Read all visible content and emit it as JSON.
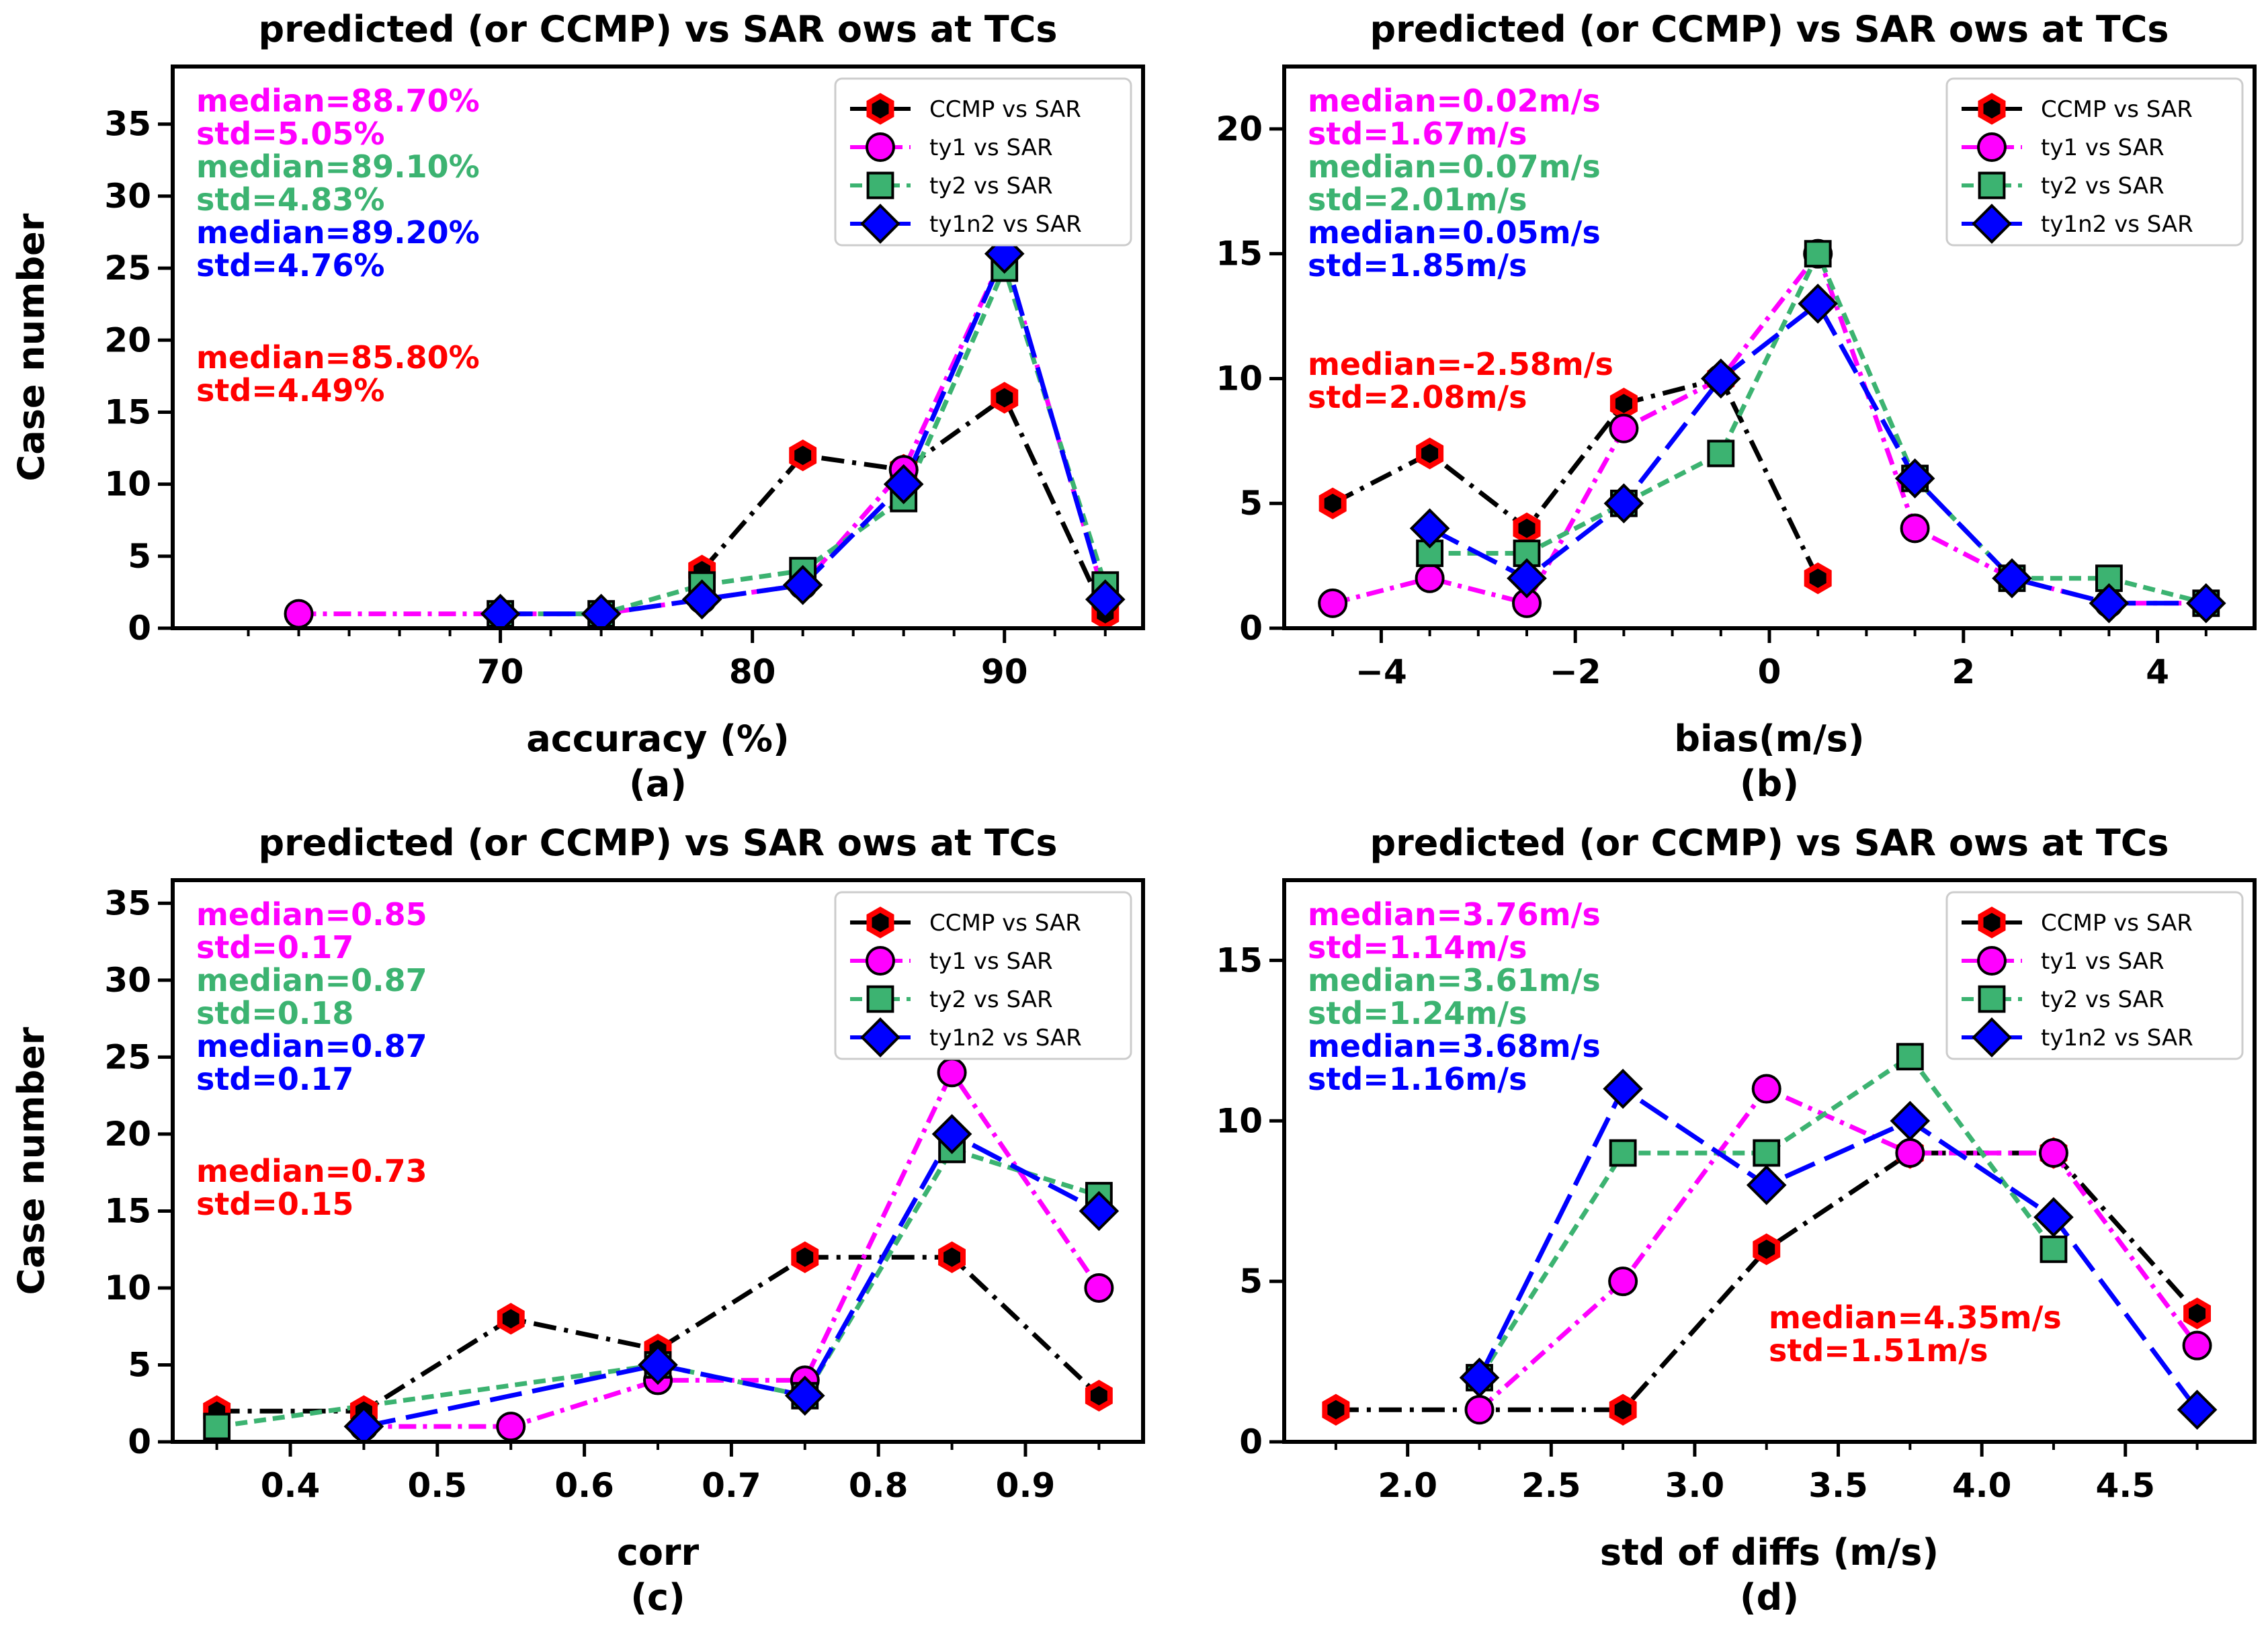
{
  "colors": {
    "ccmp": "#ff0000",
    "ty1": "#ff00ff",
    "ty2": "#3cb371",
    "ty1n2": "#0000ff",
    "black": "#000000"
  },
  "chart_data": [
    {
      "type": "line",
      "panel": "a",
      "title": "predicted (or CCMP) vs SAR ows at TCs",
      "xlabel": "accuracy (%)",
      "sublabel": "(a)",
      "ylabel": "Case number",
      "xlim": [
        57,
        95.5
      ],
      "ylim": [
        0,
        39
      ],
      "xticks": [
        70,
        80,
        90
      ],
      "xtick_labels": [
        "70",
        "80",
        "90"
      ],
      "xminor": [
        60,
        62,
        64,
        66,
        68,
        72,
        74,
        76,
        78,
        82,
        84,
        86,
        88,
        92,
        94
      ],
      "yticks": [
        0,
        5,
        10,
        15,
        20,
        25,
        30,
        35
      ],
      "ytick_labels": [
        "0",
        "5",
        "10",
        "15",
        "20",
        "25",
        "30",
        "35"
      ],
      "series": [
        {
          "key": "ccmp",
          "name": "CCMP vs SAR",
          "x": [
            78,
            82,
            86,
            90,
            94
          ],
          "y": [
            4,
            12,
            11,
            16,
            1
          ]
        },
        {
          "key": "ty1",
          "name": "ty1 vs SAR",
          "x": [
            62,
            70,
            74,
            78,
            82,
            86,
            90,
            94
          ],
          "y": [
            1,
            1,
            1,
            2,
            3,
            11,
            26,
            2
          ]
        },
        {
          "key": "ty2",
          "name": "ty2 vs SAR",
          "x": [
            70,
            74,
            78,
            82,
            86,
            90,
            94
          ],
          "y": [
            1,
            1,
            3,
            4,
            9,
            25,
            3
          ]
        },
        {
          "key": "ty1n2",
          "name": "ty1n2 vs SAR",
          "x": [
            70,
            74,
            78,
            82,
            86,
            90,
            94
          ],
          "y": [
            1,
            1,
            2,
            3,
            10,
            26,
            2
          ]
        }
      ],
      "annotations": [
        {
          "key": "ty1",
          "text": "median=88.70%"
        },
        {
          "key": "ty1",
          "text": "std=5.05%"
        },
        {
          "key": "ty2",
          "text": "median=89.10%"
        },
        {
          "key": "ty2",
          "text": "std=4.83%"
        },
        {
          "key": "ty1n2",
          "text": "median=89.20%"
        },
        {
          "key": "ty1n2",
          "text": "std=4.76%"
        },
        {
          "key": "ccmp",
          "text": "median=85.80%"
        },
        {
          "key": "ccmp",
          "text": "std=4.49%"
        }
      ],
      "legend": "top-right"
    },
    {
      "type": "line",
      "panel": "b",
      "title": "predicted (or CCMP) vs SAR ows at TCs",
      "xlabel": "bias(m/s)",
      "sublabel": "(b)",
      "ylabel": "",
      "xlim": [
        -5,
        5
      ],
      "ylim": [
        0,
        22.5
      ],
      "xticks": [
        -4,
        -2,
        0,
        2,
        4
      ],
      "xtick_labels": [
        "−4",
        "−2",
        "0",
        "2",
        "4"
      ],
      "xminor": [
        -4.5,
        -3.5,
        -3,
        -2.5,
        -1.5,
        -1,
        -0.5,
        0.5,
        1,
        1.5,
        2.5,
        3,
        3.5,
        4.5
      ],
      "yticks": [
        0,
        5,
        10,
        15,
        20
      ],
      "ytick_labels": [
        "0",
        "5",
        "10",
        "15",
        "20"
      ],
      "series": [
        {
          "key": "ccmp",
          "name": "CCMP vs SAR",
          "x": [
            -4.5,
            -3.5,
            -2.5,
            -1.5,
            -0.5,
            0.5
          ],
          "y": [
            5,
            7,
            4,
            9,
            10,
            2
          ]
        },
        {
          "key": "ty1",
          "name": "ty1 vs SAR",
          "x": [
            -4.5,
            -3.5,
            -2.5,
            -1.5,
            -0.5,
            0.5,
            1.5,
            2.5,
            3.5,
            4.5
          ],
          "y": [
            1,
            2,
            1,
            8,
            10,
            15,
            4,
            2,
            1,
            1
          ]
        },
        {
          "key": "ty2",
          "name": "ty2 vs SAR",
          "x": [
            -3.5,
            -2.5,
            -1.5,
            -0.5,
            0.5,
            1.5,
            2.5,
            3.5,
            4.5
          ],
          "y": [
            3,
            3,
            5,
            7,
            15,
            6,
            2,
            2,
            1
          ]
        },
        {
          "key": "ty1n2",
          "name": "ty1n2 vs SAR",
          "x": [
            -3.5,
            -2.5,
            -1.5,
            -0.5,
            0.5,
            1.5,
            2.5,
            3.5,
            4.5
          ],
          "y": [
            4,
            2,
            5,
            10,
            13,
            6,
            2,
            1,
            1
          ]
        }
      ],
      "annotations": [
        {
          "key": "ty1",
          "text": "median=0.02m/s"
        },
        {
          "key": "ty1",
          "text": "std=1.67m/s"
        },
        {
          "key": "ty2",
          "text": "median=0.07m/s"
        },
        {
          "key": "ty2",
          "text": "std=2.01m/s"
        },
        {
          "key": "ty1n2",
          "text": "median=0.05m/s"
        },
        {
          "key": "ty1n2",
          "text": "std=1.85m/s"
        },
        {
          "key": "ccmp",
          "text": "median=-2.58m/s"
        },
        {
          "key": "ccmp",
          "text": "std=2.08m/s"
        }
      ],
      "legend": "top-right"
    },
    {
      "type": "line",
      "panel": "c",
      "title": "predicted (or CCMP) vs SAR ows at TCs",
      "xlabel": "corr",
      "sublabel": "(c)",
      "ylabel": "Case number",
      "xlim": [
        0.32,
        0.98
      ],
      "ylim": [
        0,
        36.5
      ],
      "xticks": [
        0.4,
        0.5,
        0.6,
        0.7,
        0.8,
        0.9
      ],
      "xtick_labels": [
        "0.4",
        "0.5",
        "0.6",
        "0.7",
        "0.8",
        "0.9"
      ],
      "xminor": [
        0.35,
        0.45,
        0.55,
        0.65,
        0.75,
        0.85,
        0.95
      ],
      "yticks": [
        0,
        5,
        10,
        15,
        20,
        25,
        30,
        35
      ],
      "ytick_labels": [
        "0",
        "5",
        "10",
        "15",
        "20",
        "25",
        "30",
        "35"
      ],
      "series": [
        {
          "key": "ccmp",
          "name": "CCMP vs SAR",
          "x": [
            0.35,
            0.45,
            0.55,
            0.65,
            0.75,
            0.85,
            0.95
          ],
          "y": [
            2,
            2,
            8,
            6,
            12,
            12,
            3
          ]
        },
        {
          "key": "ty1",
          "name": "ty1 vs SAR",
          "x": [
            0.45,
            0.55,
            0.65,
            0.75,
            0.85,
            0.95
          ],
          "y": [
            1,
            1,
            4,
            4,
            24,
            10
          ]
        },
        {
          "key": "ty2",
          "name": "ty2 vs SAR",
          "x": [
            0.35,
            0.65,
            0.75,
            0.85,
            0.95
          ],
          "y": [
            1,
            5,
            3,
            19,
            16
          ]
        },
        {
          "key": "ty1n2",
          "name": "ty1n2 vs SAR",
          "x": [
            0.45,
            0.65,
            0.75,
            0.85,
            0.95
          ],
          "y": [
            1,
            5,
            3,
            20,
            15
          ]
        }
      ],
      "annotations": [
        {
          "key": "ty1",
          "text": "median=0.85"
        },
        {
          "key": "ty1",
          "text": "std=0.17"
        },
        {
          "key": "ty2",
          "text": "median=0.87"
        },
        {
          "key": "ty2",
          "text": "std=0.18"
        },
        {
          "key": "ty1n2",
          "text": "median=0.87"
        },
        {
          "key": "ty1n2",
          "text": "std=0.17"
        },
        {
          "key": "ccmp",
          "text": "median=0.73"
        },
        {
          "key": "ccmp",
          "text": "std=0.15"
        }
      ],
      "legend": "top-right"
    },
    {
      "type": "line",
      "panel": "d",
      "title": "predicted (or CCMP) vs SAR ows at TCs",
      "xlabel": "std of diffs (m/s)",
      "sublabel": "(d)",
      "ylabel": "",
      "xlim": [
        1.57,
        4.95
      ],
      "ylim": [
        0,
        17.5
      ],
      "xticks": [
        2.0,
        2.5,
        3.0,
        3.5,
        4.0,
        4.5
      ],
      "xtick_labels": [
        "2.0",
        "2.5",
        "3.0",
        "3.5",
        "4.0",
        "4.5"
      ],
      "xminor": [
        1.75,
        2.25,
        2.75,
        3.25,
        3.75,
        4.25,
        4.75
      ],
      "yticks": [
        0,
        5,
        10,
        15
      ],
      "ytick_labels": [
        "0",
        "5",
        "10",
        "15"
      ],
      "series": [
        {
          "key": "ccmp",
          "name": "CCMP vs SAR",
          "x": [
            1.75,
            2.75,
            3.25,
            3.75,
            4.25,
            4.75
          ],
          "y": [
            1,
            1,
            6,
            9,
            9,
            4
          ]
        },
        {
          "key": "ty1",
          "name": "ty1 vs SAR",
          "x": [
            2.25,
            2.75,
            3.25,
            3.75,
            4.25,
            4.75
          ],
          "y": [
            1,
            5,
            11,
            9,
            9,
            3
          ]
        },
        {
          "key": "ty2",
          "name": "ty2 vs SAR",
          "x": [
            2.25,
            2.75,
            3.25,
            3.75,
            4.25
          ],
          "y": [
            2,
            9,
            9,
            12,
            6
          ]
        },
        {
          "key": "ty1n2",
          "name": "ty1n2 vs SAR",
          "x": [
            2.25,
            2.75,
            3.25,
            3.75,
            4.25,
            4.75
          ],
          "y": [
            2,
            11,
            8,
            10,
            7,
            1
          ]
        }
      ],
      "annotations": [
        {
          "key": "ty1",
          "text": "median=3.76m/s"
        },
        {
          "key": "ty1",
          "text": "std=1.14m/s"
        },
        {
          "key": "ty2",
          "text": "median=3.61m/s"
        },
        {
          "key": "ty2",
          "text": "std=1.24m/s"
        },
        {
          "key": "ty1n2",
          "text": "median=3.68m/s"
        },
        {
          "key": "ty1n2",
          "text": "std=1.16m/s"
        },
        {
          "key": "ccmp",
          "text": "median=4.35m/s"
        },
        {
          "key": "ccmp",
          "text": "std=1.51m/s"
        }
      ],
      "legend": "top-right"
    }
  ]
}
